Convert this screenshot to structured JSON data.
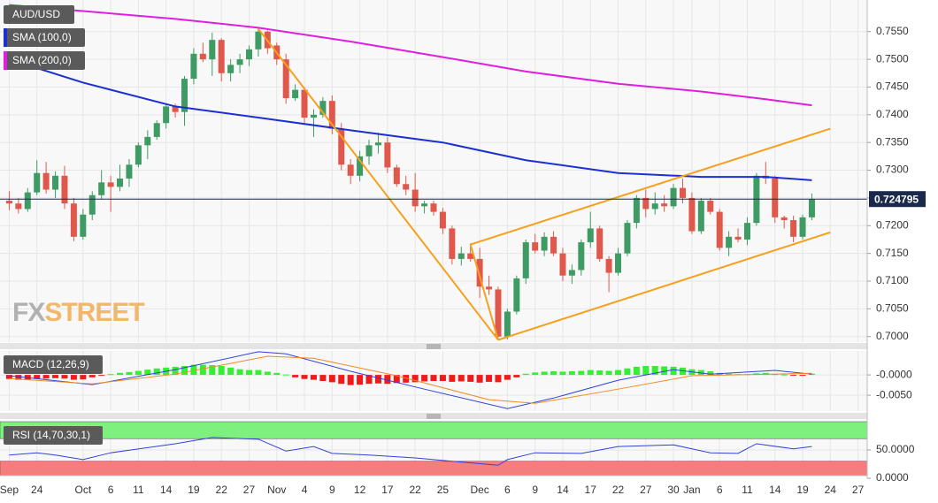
{
  "chart_data": [
    {
      "type": "candlestick",
      "title": "AUD/USD",
      "categories": [
        "Sep",
        null,
        null,
        "24",
        null,
        null,
        null,
        null,
        "Oct",
        null,
        null,
        "6",
        null,
        null,
        "11",
        null,
        null,
        "14",
        null,
        null,
        "19",
        null,
        null,
        "22",
        null,
        null,
        "27",
        null,
        null,
        "Nov",
        null,
        null,
        "4",
        null,
        null,
        "9",
        null,
        null,
        "12",
        null,
        null,
        "17",
        null,
        null,
        "22",
        null,
        null,
        "25",
        null,
        null,
        null,
        "Dec",
        null,
        null,
        "6",
        null,
        null,
        "9",
        null,
        null,
        "14",
        null,
        null,
        "17",
        null,
        null,
        "22",
        null,
        null,
        "27",
        null,
        null,
        "30",
        null,
        "Jan",
        null,
        null,
        "6",
        null,
        null,
        "11",
        null,
        null,
        "14",
        null,
        null,
        "19",
        null,
        null,
        "24",
        null,
        null,
        "27"
      ],
      "open": [
        0.7245,
        0.724,
        0.723,
        0.726,
        0.7295,
        0.7265,
        0.729,
        0.724,
        0.718,
        0.722,
        0.7255,
        0.7278,
        0.727,
        0.7285,
        0.731,
        0.7345,
        0.736,
        0.7385,
        0.7415,
        0.7405,
        0.7465,
        0.751,
        0.75,
        0.7535,
        0.7475,
        0.749,
        0.75,
        0.7518,
        0.755,
        0.7525,
        0.75,
        0.743,
        0.7445,
        0.7395,
        0.74,
        0.7425,
        0.7375,
        0.731,
        0.729,
        0.7325,
        0.7345,
        0.735,
        0.7305,
        0.7275,
        0.7265,
        0.7235,
        0.724,
        0.7225,
        0.7195,
        0.714,
        0.715,
        0.714,
        0.709,
        0.7085,
        0.7,
        0.7045,
        0.7105,
        0.717,
        0.7155,
        0.718,
        0.715,
        0.711,
        0.712,
        0.717,
        0.7195,
        0.714,
        0.7115,
        0.715,
        0.7205,
        0.725,
        0.723,
        0.724,
        0.7235,
        0.7268,
        0.725,
        0.719,
        0.7245,
        0.7225,
        0.716,
        0.718,
        0.7175,
        0.7205,
        0.729,
        0.7285,
        0.7215,
        0.721,
        0.718,
        0.7215,
        null,
        null,
        null,
        null,
        null
      ],
      "high": [
        0.7262,
        0.725,
        0.7268,
        0.7318,
        0.7315,
        0.7298,
        0.7308,
        0.725,
        0.723,
        0.7262,
        0.73,
        0.729,
        0.731,
        0.732,
        0.735,
        0.7372,
        0.739,
        0.742,
        0.742,
        0.747,
        0.752,
        0.753,
        0.7548,
        0.7538,
        0.75,
        0.751,
        0.7525,
        0.7558,
        0.7552,
        0.753,
        0.751,
        0.7455,
        0.745,
        0.741,
        0.7432,
        0.7435,
        0.7385,
        0.732,
        0.7335,
        0.7355,
        0.7368,
        0.736,
        0.731,
        0.729,
        0.7295,
        0.7245,
        0.7245,
        0.7232,
        0.72,
        0.7162,
        0.7168,
        0.716,
        0.711,
        0.709,
        0.705,
        0.711,
        0.7175,
        0.7185,
        0.7188,
        0.719,
        0.716,
        0.713,
        0.7175,
        0.7225,
        0.72,
        0.7145,
        0.716,
        0.721,
        0.7255,
        0.7265,
        0.726,
        0.7255,
        0.7275,
        0.7285,
        0.726,
        0.725,
        0.725,
        0.723,
        0.719,
        0.7195,
        0.7215,
        0.7295,
        0.7315,
        0.729,
        0.7218,
        0.7218,
        0.722,
        0.7258,
        null,
        null,
        null,
        null,
        null
      ],
      "low": [
        0.7228,
        0.7222,
        0.7225,
        0.7255,
        0.7258,
        0.725,
        0.723,
        0.7172,
        0.7175,
        0.721,
        0.7248,
        0.7225,
        0.7262,
        0.727,
        0.7305,
        0.732,
        0.7355,
        0.7375,
        0.7395,
        0.738,
        0.7455,
        0.7495,
        0.747,
        0.746,
        0.746,
        0.7475,
        0.7488,
        0.7505,
        0.751,
        0.749,
        0.742,
        0.7425,
        0.7385,
        0.736,
        0.7395,
        0.7365,
        0.73,
        0.7275,
        0.728,
        0.731,
        0.733,
        0.7295,
        0.727,
        0.7255,
        0.7225,
        0.7222,
        0.7218,
        0.7185,
        0.713,
        0.7128,
        0.7135,
        0.707,
        0.7075,
        0.6995,
        0.6995,
        0.704,
        0.7095,
        0.715,
        0.7145,
        0.7145,
        0.71,
        0.7095,
        0.711,
        0.716,
        0.7135,
        0.708,
        0.711,
        0.7145,
        0.7195,
        0.7215,
        0.722,
        0.7225,
        0.723,
        0.724,
        0.7185,
        0.7185,
        0.722,
        0.7155,
        0.7145,
        0.717,
        0.7165,
        0.72,
        0.7275,
        0.7205,
        0.7195,
        0.717,
        0.7175,
        0.721,
        null,
        null,
        null,
        null,
        null
      ],
      "close": [
        0.724,
        0.723,
        0.726,
        0.7295,
        0.7265,
        0.729,
        0.724,
        0.718,
        0.722,
        0.7255,
        0.7278,
        0.727,
        0.7285,
        0.731,
        0.7345,
        0.736,
        0.7385,
        0.7415,
        0.7405,
        0.7465,
        0.751,
        0.75,
        0.7535,
        0.7475,
        0.749,
        0.75,
        0.7518,
        0.755,
        0.752,
        0.75,
        0.743,
        0.7445,
        0.7395,
        0.74,
        0.7425,
        0.7375,
        0.731,
        0.729,
        0.7325,
        0.7345,
        0.735,
        0.7305,
        0.7275,
        0.7265,
        0.7235,
        0.724,
        0.7225,
        0.7195,
        0.714,
        0.715,
        0.714,
        0.709,
        0.7085,
        0.7,
        0.7045,
        0.7105,
        0.717,
        0.7155,
        0.718,
        0.715,
        0.711,
        0.712,
        0.717,
        0.7195,
        0.714,
        0.7115,
        0.715,
        0.7205,
        0.725,
        0.723,
        0.724,
        0.7235,
        0.7268,
        0.725,
        0.719,
        0.7245,
        0.7225,
        0.716,
        0.718,
        0.7175,
        0.7205,
        0.729,
        0.7285,
        0.7215,
        0.721,
        0.718,
        0.7215,
        0.7248,
        null,
        null,
        null,
        null,
        null
      ],
      "up_color": "#3d9b63",
      "down_color": "#e0584b",
      "series": [
        {
          "name": "SMA (100,0)",
          "color": "#1c2fd0",
          "x": [
            0,
            8,
            18,
            27,
            37,
            47,
            56,
            66,
            75,
            82,
            87
          ],
          "values": [
            0.75,
            0.7458,
            0.7415,
            0.7395,
            0.7372,
            0.735,
            0.7318,
            0.7295,
            0.7288,
            0.7288,
            0.7282
          ]
        },
        {
          "name": "SMA (200,0)",
          "color": "#e01ee0",
          "x": [
            0,
            8,
            18,
            27,
            37,
            47,
            56,
            66,
            75,
            82,
            87
          ],
          "values": [
            0.7598,
            0.7587,
            0.7573,
            0.7557,
            0.7532,
            0.7504,
            0.7478,
            0.7456,
            0.7442,
            0.7428,
            0.7417
          ]
        }
      ],
      "trend_lines": [
        {
          "color": "#f5a01e",
          "x": [
            27,
            53
          ],
          "values": [
            0.7555,
            0.6994
          ]
        },
        {
          "color": "#f5a01e",
          "x": [
            50,
            89
          ],
          "values": [
            0.7166,
            0.7375
          ]
        },
        {
          "color": "#f5a01e",
          "x": [
            53,
            89
          ],
          "values": [
            0.6994,
            0.7188
          ]
        },
        {
          "color": "#f5a01e",
          "x": [
            50,
            53
          ],
          "values": [
            0.7166,
            0.6994
          ]
        }
      ],
      "last_price": 0.724795,
      "logo": [
        "FX",
        "STREET"
      ],
      "ylim": [
        0.699,
        0.7607
      ],
      "yticks": [
        {
          "value": 0.7,
          "label": "0.7000"
        },
        {
          "value": 0.705,
          "label": "0.7050"
        },
        {
          "value": 0.71,
          "label": "0.7100"
        },
        {
          "value": 0.715,
          "label": "0.7150"
        },
        {
          "value": 0.72,
          "label": "0.7200"
        },
        {
          "value": 0.725,
          "label": "0.7250"
        },
        {
          "value": 0.73,
          "label": "0.7300"
        },
        {
          "value": 0.735,
          "label": "0.7350"
        },
        {
          "value": 0.74,
          "label": "0.7400"
        },
        {
          "value": 0.745,
          "label": "0.7450"
        },
        {
          "value": 0.75,
          "label": "0.7500"
        },
        {
          "value": 0.755,
          "label": "0.7550"
        }
      ],
      "grid": true
    },
    {
      "type": "bar",
      "title": "MACD (12,26,9)",
      "values": [
        -0.001,
        -0.0012,
        -0.0012,
        -0.001,
        -0.0009,
        -0.0008,
        -0.0009,
        -0.0012,
        -0.0011,
        -0.0006,
        -0.0002,
        0.0002,
        0.0005,
        0.0007,
        0.001,
        0.0013,
        0.0016,
        0.0018,
        0.002,
        0.0022,
        0.0025,
        0.0025,
        0.0024,
        0.0022,
        0.0018,
        0.0014,
        0.0012,
        0.0012,
        0.0008,
        0.0005,
        0.0001,
        -0.0006,
        -0.001,
        -0.0012,
        -0.0015,
        -0.0018,
        -0.0022,
        -0.0025,
        -0.0024,
        -0.0022,
        -0.0021,
        -0.0022,
        -0.002,
        -0.0019,
        -0.0018,
        -0.0016,
        -0.0015,
        -0.0015,
        -0.0017,
        -0.0016,
        -0.0017,
        -0.0019,
        -0.0017,
        -0.0018,
        -0.0012,
        -0.0006,
        0.0003,
        0.0006,
        0.0008,
        0.0009,
        0.0008,
        0.0009,
        0.001,
        0.0012,
        0.0011,
        0.001,
        0.0012,
        0.0016,
        0.002,
        0.0022,
        0.0022,
        0.0021,
        0.002,
        0.0018,
        0.0014,
        0.0012,
        0.0009,
        0.0005,
        0.0003,
        0.0002,
        0.0002,
        0.0004,
        0.0005,
        0.0002,
        0.0001,
        -0.0002,
        -0.0001,
        0.0003
      ],
      "pos_color": "#33f033",
      "neg_color": "#f01a1a",
      "series": [
        {
          "color": "#2e43d9",
          "x": [
            0,
            9,
            18,
            27,
            30,
            37,
            45,
            54,
            59,
            66,
            72,
            76,
            83,
            87
          ],
          "values": [
            -0.0002,
            -0.0024,
            0.0013,
            0.0057,
            0.0052,
            0.0009,
            -0.0035,
            -0.0083,
            -0.0057,
            -0.0013,
            0.0013,
            0.0002,
            0.0011,
            0.0002
          ]
        },
        {
          "color": "#f08a24",
          "x": [
            0,
            9,
            18,
            28,
            33,
            42,
            52,
            57,
            66,
            74,
            87
          ],
          "values": [
            -0.0009,
            -0.0022,
            0.0002,
            0.0046,
            0.0041,
            -0.0002,
            -0.0061,
            -0.007,
            -0.0035,
            -0.0002,
            0.0004
          ]
        }
      ],
      "ylim": [
        -0.0089,
        0.0059
      ],
      "yticks": [
        {
          "value": 0,
          "label": "-0.0000"
        },
        {
          "value": -0.005,
          "label": "-0.0050"
        }
      ],
      "grid": true
    },
    {
      "type": "line",
      "title": "RSI (14,70,30,1)",
      "series": [
        {
          "color": "#2e43d9",
          "x": [
            0,
            3,
            5,
            8,
            11,
            18,
            22,
            27,
            30,
            33,
            35,
            39,
            44,
            48,
            53,
            54,
            57,
            62,
            66,
            72,
            76,
            79,
            81,
            85,
            87
          ],
          "values": [
            41,
            45,
            41,
            33,
            45,
            61,
            72,
            69,
            48,
            56,
            44,
            41,
            36,
            30,
            23,
            33,
            45,
            44,
            56,
            59,
            45,
            44,
            61,
            52,
            56
          ]
        }
      ],
      "bands": [
        {
          "color": "#7ef07e",
          "range": [
            70,
            100
          ]
        },
        {
          "color": "#f47e7e",
          "range": [
            0,
            30
          ]
        }
      ],
      "ylim": [
        0,
        100
      ],
      "yticks": [
        {
          "value": 50,
          "label": "50.0000"
        },
        {
          "value": 0,
          "label": "0.0000"
        }
      ],
      "grid": true
    }
  ]
}
